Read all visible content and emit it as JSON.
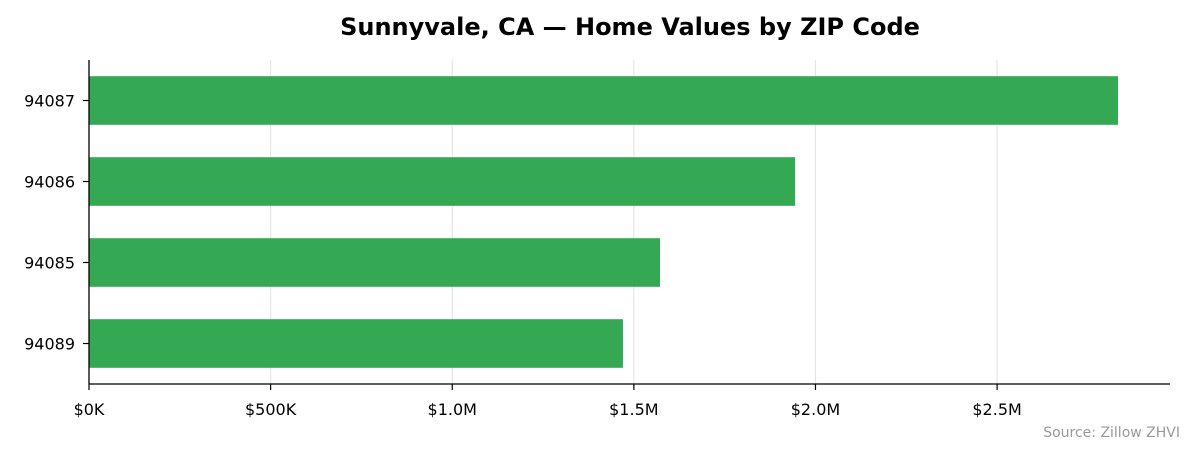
{
  "chart_data": {
    "type": "bar",
    "orientation": "horizontal",
    "title": "Sunnyvale, CA — Home Values by ZIP Code",
    "xlabel": "",
    "ylabel": "",
    "categories": [
      "94087",
      "94086",
      "94085",
      "94089"
    ],
    "values": [
      2833000,
      1944000,
      1572000,
      1470000
    ],
    "xlim": [
      0,
      2976000
    ],
    "xticks": [
      0,
      500000,
      1000000,
      1500000,
      2000000,
      2500000
    ],
    "xtick_labels": [
      "$0K",
      "$500K",
      "$1.0M",
      "$1.5M",
      "$2.0M",
      "$2.5M"
    ],
    "grid": "vertical",
    "bar_color": "#34a853",
    "source": "Source: Zillow ZHVI"
  }
}
